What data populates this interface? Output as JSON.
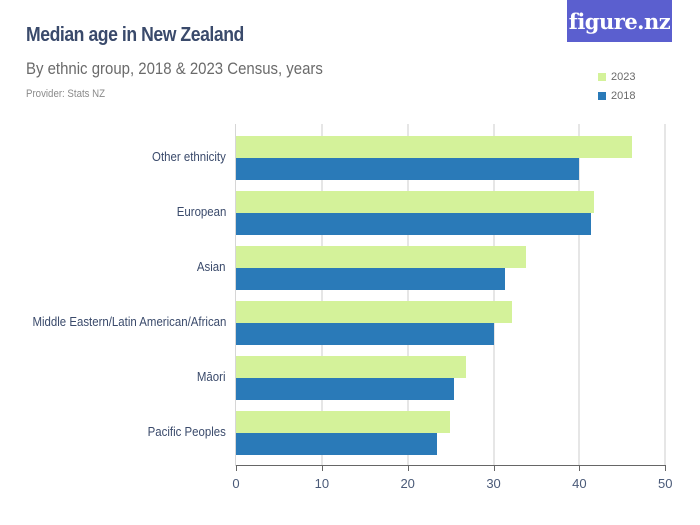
{
  "header": {
    "title": "Median age in New Zealand",
    "subtitle": "By ethnic group, 2018 & 2023 Census, years",
    "provider": "Provider: Stats NZ",
    "logo": "figure.nz"
  },
  "legend": [
    {
      "label": "2023",
      "color": "#d4f29a"
    },
    {
      "label": "2018",
      "color": "#2a7ab8"
    }
  ],
  "axis": {
    "ticks": [
      "0",
      "10",
      "20",
      "30",
      "40",
      "50"
    ]
  },
  "chart_data": {
    "type": "bar",
    "orientation": "horizontal",
    "title": "Median age in New Zealand",
    "subtitle": "By ethnic group, 2018 & 2023 Census, years",
    "xlabel": "",
    "ylabel": "",
    "xlim": [
      0,
      50
    ],
    "grid": true,
    "legend_position": "top-right",
    "categories": [
      "Other ethnicity",
      "European",
      "Asian",
      "Middle Eastern/Latin American/African",
      "Māori",
      "Pacific Peoples"
    ],
    "series": [
      {
        "name": "2023",
        "color": "#d4f29a",
        "values": [
          46.1,
          41.7,
          33.8,
          32.2,
          26.8,
          24.9
        ]
      },
      {
        "name": "2018",
        "color": "#2a7ab8",
        "values": [
          39.9,
          41.4,
          31.3,
          30.1,
          25.4,
          23.4
        ]
      }
    ]
  }
}
